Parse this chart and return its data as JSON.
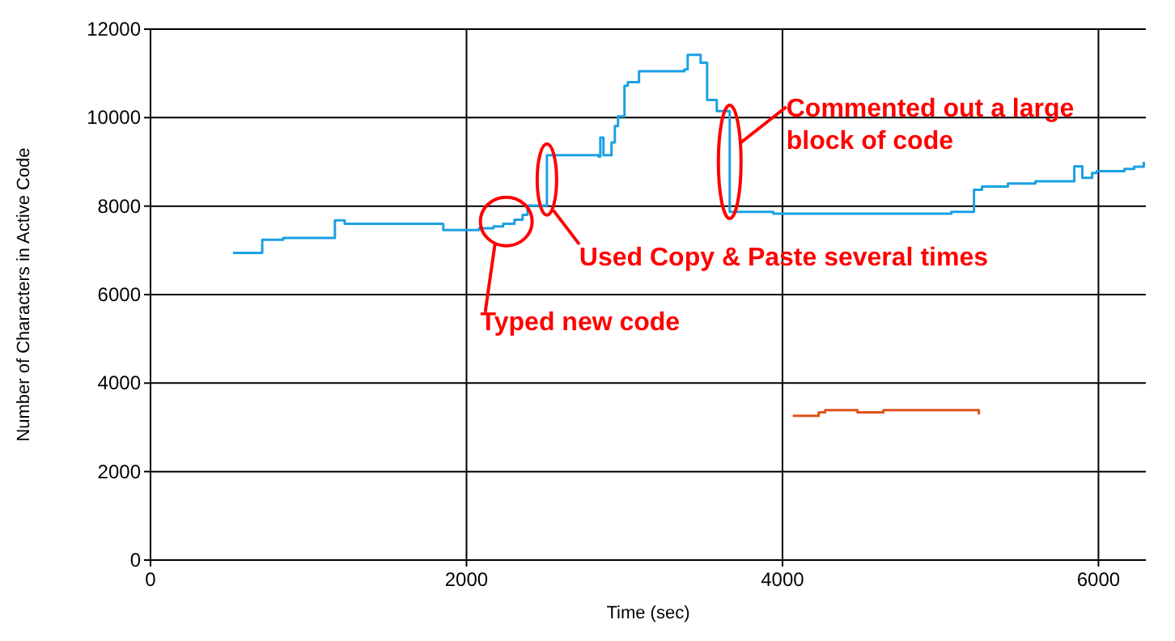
{
  "chart_data": {
    "type": "step",
    "xlabel": "Time (sec)",
    "ylabel": "Number of Characters in Active Code",
    "xlim": [
      0,
      6300
    ],
    "xticks": [
      0,
      2000,
      4000,
      6000
    ],
    "ylim": [
      0,
      12000
    ],
    "yticks": [
      0,
      2000,
      4000,
      6000,
      8000,
      10000,
      12000
    ],
    "grid": true,
    "series": [
      {
        "color": "#1ba1e2",
        "x": [
          522,
          707,
          840,
          1167,
          1229,
          1853,
          2079,
          2171,
          2232,
          2304,
          2355,
          2386,
          2509,
          2836,
          2847,
          2867,
          2918,
          2939,
          2959,
          3000,
          3021,
          3092,
          3379,
          3400,
          3482,
          3523,
          3584,
          3666,
          3942,
          5069,
          5212,
          5263,
          5427,
          5601,
          5847,
          5898,
          5960,
          5990,
          6164,
          6226,
          6287
        ],
        "values": [
          6940,
          7240,
          7280,
          7680,
          7600,
          7460,
          7500,
          7540,
          7600,
          7690,
          7800,
          8010,
          9150,
          9120,
          9550,
          9150,
          9440,
          9810,
          10030,
          10720,
          10800,
          11050,
          11090,
          11420,
          11240,
          10400,
          10150,
          7870,
          7830,
          7870,
          8370,
          8440,
          8510,
          8560,
          8900,
          8640,
          8750,
          8790,
          8840,
          8890,
          9000
        ]
      },
      {
        "color": "#e0521b",
        "x": [
          4065,
          4229,
          4270,
          4475,
          4639,
          5243
        ],
        "values": [
          3260,
          3340,
          3390,
          3340,
          3390,
          3290
        ]
      }
    ],
    "annotations": [
      {
        "text": "Typed new code",
        "x": 2180,
        "y": 7140
      },
      {
        "text": "Used Copy & Paste several times",
        "x": 2509,
        "y": 8600
      },
      {
        "text": "Commented out a large\nblock of code",
        "x": 3666,
        "y": 9000
      }
    ]
  }
}
